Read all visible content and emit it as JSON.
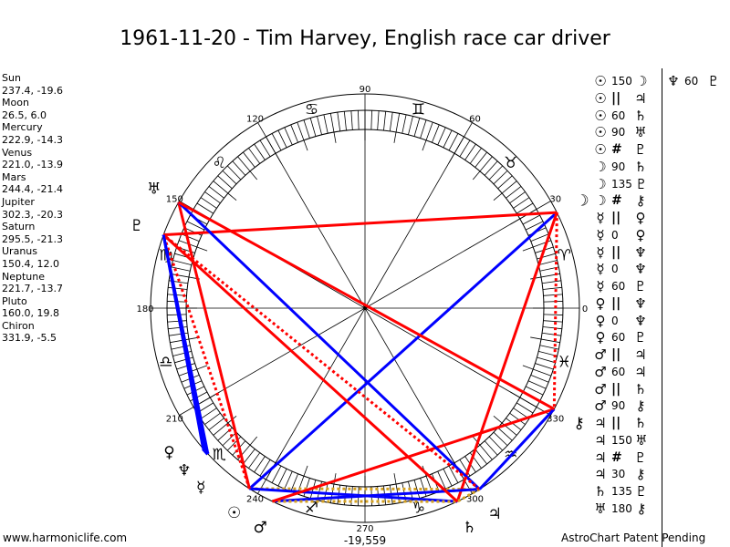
{
  "title": "1961-11-20 - Tim Harvey, English race car driver",
  "planets": [
    {
      "key": "sun",
      "name": "Sun",
      "pos": "237.4, -19.6",
      "glyph": "☉"
    },
    {
      "key": "moon",
      "name": "Moon",
      "pos": "26.5, 6.0",
      "glyph": "☽"
    },
    {
      "key": "mercury",
      "name": "Mercury",
      "pos": "222.9, -14.3",
      "glyph": "☿"
    },
    {
      "key": "venus",
      "name": "Venus",
      "pos": "221.0, -13.9",
      "glyph": "♀"
    },
    {
      "key": "mars",
      "name": "Mars",
      "pos": "244.4, -21.4",
      "glyph": "♂"
    },
    {
      "key": "jupiter",
      "name": "Jupiter",
      "pos": "302.3, -20.3",
      "glyph": "♃"
    },
    {
      "key": "saturn",
      "name": "Saturn",
      "pos": "295.5, -21.3",
      "glyph": "♄"
    },
    {
      "key": "uranus",
      "name": "Uranus",
      "pos": "150.4, 12.0",
      "glyph": "♅"
    },
    {
      "key": "neptune",
      "name": "Neptune",
      "pos": "221.7, -13.7",
      "glyph": "♆"
    },
    {
      "key": "pluto",
      "name": "Pluto",
      "pos": "160.0, 19.8",
      "glyph": "♇"
    },
    {
      "key": "chiron",
      "name": "Chiron",
      "pos": "331.9, -5.5",
      "glyph": "⚷"
    }
  ],
  "signs": [
    "♈",
    "♉",
    "♊",
    "♋",
    "♌",
    "♍",
    "♎",
    "♏",
    "♐",
    "♑",
    "♒",
    "♓"
  ],
  "degree_labels": [
    "0",
    "30",
    "60",
    "90",
    "120",
    "150",
    "180",
    "210",
    "240",
    "270",
    "300",
    "330"
  ],
  "aspects": [
    {
      "p1": "sun",
      "type": "150",
      "p2": "moon"
    },
    {
      "p1": "sun",
      "type": "||",
      "p2": "jupiter"
    },
    {
      "p1": "sun",
      "type": "60",
      "p2": "saturn"
    },
    {
      "p1": "sun",
      "type": "90",
      "p2": "uranus"
    },
    {
      "p1": "sun",
      "type": "#",
      "p2": "pluto"
    },
    {
      "p1": "moon",
      "type": "90",
      "p2": "saturn"
    },
    {
      "p1": "moon",
      "type": "135",
      "p2": "pluto"
    },
    {
      "p1": "moon",
      "type": "#",
      "p2": "chiron"
    },
    {
      "p1": "mercury",
      "type": "||",
      "p2": "venus"
    },
    {
      "p1": "mercury",
      "type": "0",
      "p2": "venus"
    },
    {
      "p1": "mercury",
      "type": "||",
      "p2": "neptune"
    },
    {
      "p1": "mercury",
      "type": "0",
      "p2": "neptune"
    },
    {
      "p1": "mercury",
      "type": "60",
      "p2": "pluto"
    },
    {
      "p1": "venus",
      "type": "||",
      "p2": "neptune"
    },
    {
      "p1": "venus",
      "type": "0",
      "p2": "neptune"
    },
    {
      "p1": "venus",
      "type": "60",
      "p2": "pluto"
    },
    {
      "p1": "mars",
      "type": "||",
      "p2": "jupiter"
    },
    {
      "p1": "mars",
      "type": "60",
      "p2": "jupiter"
    },
    {
      "p1": "mars",
      "type": "||",
      "p2": "saturn"
    },
    {
      "p1": "mars",
      "type": "90",
      "p2": "chiron"
    },
    {
      "p1": "jupiter",
      "type": "||",
      "p2": "saturn"
    },
    {
      "p1": "jupiter",
      "type": "150",
      "p2": "uranus"
    },
    {
      "p1": "jupiter",
      "type": "#",
      "p2": "pluto"
    },
    {
      "p1": "jupiter",
      "type": "30",
      "p2": "chiron"
    },
    {
      "p1": "saturn",
      "type": "135",
      "p2": "pluto"
    },
    {
      "p1": "uranus",
      "type": "180",
      "p2": "chiron"
    },
    {
      "p1": "neptune",
      "type": "60",
      "p2": "pluto"
    }
  ],
  "colors": {
    "hard": "#ff0000",
    "soft": "#0000ff",
    "parallel": "#d4a020",
    "contraparallel": "#ff0000"
  },
  "center_label": "-19,559",
  "footer": {
    "left": "www.harmoniclife.com",
    "right": "AstroChart Patent Pending"
  }
}
